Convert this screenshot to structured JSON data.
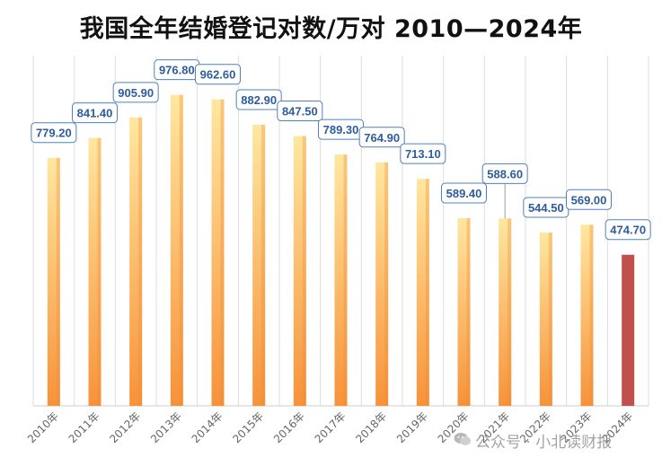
{
  "chart_data": {
    "type": "bar",
    "title": "我国全年结婚登记对数/万对   2010—2024年",
    "categories": [
      "2010年",
      "2011年",
      "2012年",
      "2013年",
      "2014年",
      "2015年",
      "2016年",
      "2017年",
      "2018年",
      "2019年",
      "2020年",
      "2021年",
      "2022年",
      "2023年",
      "2024年"
    ],
    "values": [
      779.2,
      841.4,
      905.9,
      976.8,
      962.6,
      882.9,
      847.5,
      789.3,
      764.9,
      713.1,
      589.4,
      588.6,
      544.5,
      569.0,
      474.7
    ],
    "labels": [
      "779.20",
      "841.40",
      "905.90",
      "976.80",
      "962.60",
      "882.90",
      "847.50",
      "789.30",
      "764.90",
      "713.10",
      "589.40",
      "588.60",
      "544.50",
      "569.00",
      "474.70"
    ],
    "ylim": [
      0,
      1100
    ],
    "grid": "vertical",
    "colors": {
      "bar_gradient_start": "#FFE7A0",
      "bar_gradient_end": "#F7923A",
      "highlight": "#C0504D",
      "label_border": "#4F81BD",
      "label_text": "#2E5C9E"
    }
  },
  "watermark": {
    "text": "公众号 · 小北读财报",
    "icon": "wechat-icon"
  }
}
